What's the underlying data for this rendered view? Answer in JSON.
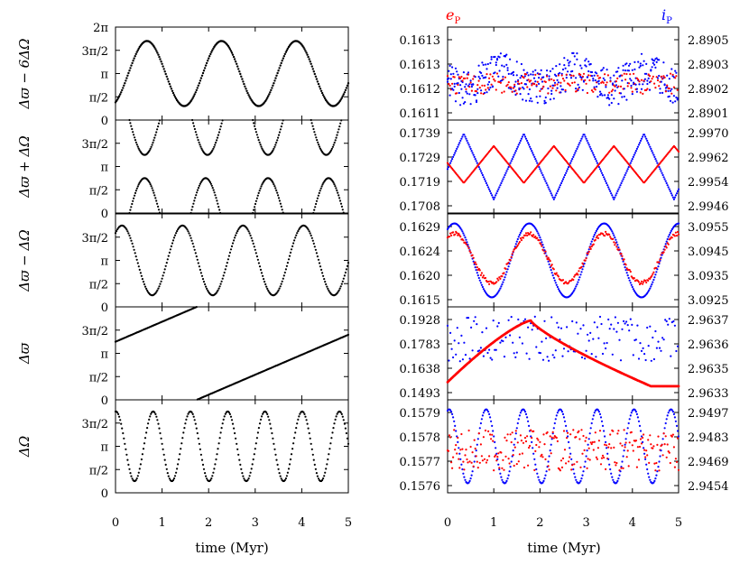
{
  "left_panels": [
    {
      "ylabel": "Δϖ − 6ΔΩ",
      "yticks": [
        "0",
        "π/2",
        "π",
        "3π/2",
        "2π"
      ]
    },
    {
      "ylabel": "Δϖ + ΔΩ",
      "yticks": [
        "0",
        "π/2",
        "π",
        "3π/2"
      ]
    },
    {
      "ylabel": "Δϖ − ΔΩ",
      "yticks": [
        "0",
        "π/2",
        "π",
        "3π/2"
      ]
    },
    {
      "ylabel": "Δϖ",
      "yticks": [
        "0",
        "π/2",
        "π",
        "3π/2"
      ]
    },
    {
      "ylabel": "ΔΩ",
      "yticks": [
        "0",
        "π/2",
        "π",
        "3π/2"
      ]
    }
  ],
  "right_panels": [
    {
      "left": [
        "0.1613",
        "0.1613",
        "0.1612",
        "0.1611"
      ],
      "right": [
        "2.8905",
        "2.8903",
        "2.8902",
        "2.8901"
      ]
    },
    {
      "left": [
        "0.1739",
        "0.1729",
        "0.1719",
        "0.1708"
      ],
      "right": [
        "2.9970",
        "2.9962",
        "2.9954",
        "2.9946"
      ]
    },
    {
      "left": [
        "0.1629",
        "0.1624",
        "0.1620",
        "0.1615"
      ],
      "right": [
        "3.0955",
        "3.0945",
        "3.0935",
        "3.0925"
      ]
    },
    {
      "left": [
        "0.1928",
        "0.1783",
        "0.1638",
        "0.1493"
      ],
      "right": [
        "2.9637",
        "2.9636",
        "2.9635",
        "2.9633"
      ]
    },
    {
      "left": [
        "0.1579",
        "0.1578",
        "0.1577",
        "0.1576"
      ],
      "right": [
        "2.9497",
        "2.9483",
        "2.9469",
        "2.9454"
      ]
    }
  ],
  "xticks": [
    "0",
    "1",
    "2",
    "3",
    "4",
    "5"
  ],
  "xlabel_left": "time (Myr)",
  "xlabel_right": "time (Myr)",
  "legend_e": {
    "base": "e",
    "sub": "P",
    "color": "#ff0000"
  },
  "legend_i": {
    "base": "i",
    "sub": "P",
    "color": "#0000ff"
  },
  "chart_data": {
    "type": "scatter",
    "x_unit": "Myr",
    "xlim": [
      0,
      5
    ],
    "series": [
      {
        "panel": "left-1",
        "kind": "sin",
        "mean_pi": 1.0,
        "amp_pi": 0.7,
        "period": 1.6,
        "phase": 0.2,
        "ylim_pi": [
          0,
          2
        ]
      },
      {
        "panel": "left-2",
        "kind": "arches",
        "period": 1.38,
        "arch_width": 0.7,
        "upper_offset": 0.0,
        "lower_offset": 0.69,
        "ylim_pi": [
          0,
          2
        ]
      },
      {
        "panel": "left-3",
        "kind": "sin",
        "mean_pi": 1.0,
        "amp_pi": 0.75,
        "period": 1.3,
        "phase": 0.4,
        "ylim_pi": [
          0,
          2
        ]
      },
      {
        "panel": "left-4",
        "kind": "line",
        "value0_pi": 1.25,
        "rate_pi_per_Myr": 0.43,
        "ylim_pi": [
          0,
          2
        ]
      },
      {
        "panel": "left-5",
        "kind": "sin",
        "mean_pi": 1.0,
        "amp_pi": 0.75,
        "period": 0.8,
        "phase": 1.0,
        "ylim_pi": [
          0,
          2
        ]
      },
      {
        "panel": "right-1",
        "name": "eP / iP",
        "note": "scattered noisy points near middle"
      },
      {
        "panel": "right-2",
        "name": "eP / iP",
        "note": "anti-phased cusp oscillation, period 1.0 Myr"
      },
      {
        "panel": "right-3",
        "name": "eP / iP",
        "note": "in-phase oscillation, period 1.6 Myr"
      },
      {
        "panel": "right-4",
        "name": "eP",
        "note": "single peak at 1.8 Myr"
      },
      {
        "panel": "right-5",
        "name": "iP",
        "note": "oscillation period 0.8 Myr"
      }
    ]
  }
}
